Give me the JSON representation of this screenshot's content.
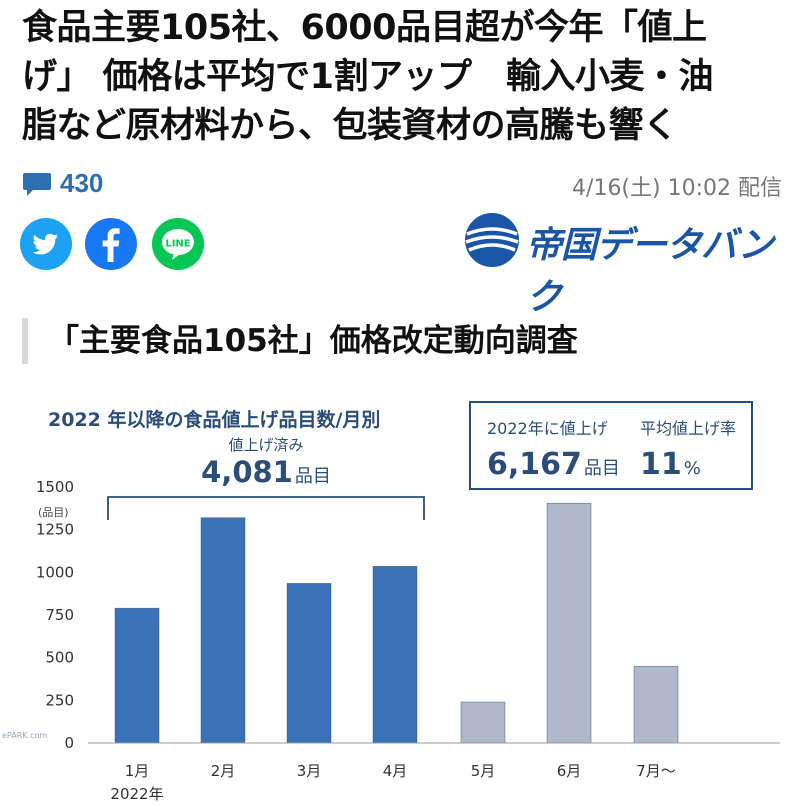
{
  "article": {
    "headline_lines": [
      "食品主要105社、6000品目超が今年「値上",
      "げ」 価格は平均で1割アップ　輸入小麦・油",
      "脂など原材料から、包装資材の高騰も響く"
    ],
    "comment_count": "430",
    "timestamp": "4/16(土) 10:02 配信",
    "source_logo_text": "帝国データバンク",
    "section_title": "「主要食品105社」価格改定動向調査"
  },
  "share": {
    "buttons": [
      "twitter-icon",
      "facebook-icon",
      "line-icon"
    ],
    "line_label": "LINE"
  },
  "colors": {
    "accent_blue": "#2d6fb1",
    "bar_blue": "#3a72b8",
    "bar_gray": "#b0b8cc",
    "label_blue": "#2a4d7a"
  },
  "chart_data": {
    "type": "bar",
    "title": "2022 年以降の食品値上げ品目数/月別",
    "ylabel": "(品目)",
    "ylim": [
      0,
      1500
    ],
    "yticks": [
      "0",
      "250",
      "500",
      "750",
      "1000",
      "1250",
      "1500"
    ],
    "categories": [
      "1月",
      "2月",
      "3月",
      "4月",
      "5月",
      "6月",
      "7月～"
    ],
    "x_sublabel": "2022年",
    "values": [
      790,
      1320,
      935,
      1035,
      240,
      1405,
      450
    ],
    "bar_colors": [
      "#3a72b8",
      "#3a72b8",
      "#3a72b8",
      "#3a72b8",
      "#b0b8cc",
      "#b0b8cc",
      "#b0b8cc"
    ],
    "annotation": {
      "label": "値上げ済み",
      "value": "4,081",
      "unit": "品目"
    },
    "summary_box": {
      "left_label": "2022年に値上げ",
      "left_value": "6,167",
      "left_unit": "品目",
      "right_label": "平均値上げ率",
      "right_value": "11",
      "right_unit": "%"
    }
  },
  "watermark": "ePARK.com"
}
